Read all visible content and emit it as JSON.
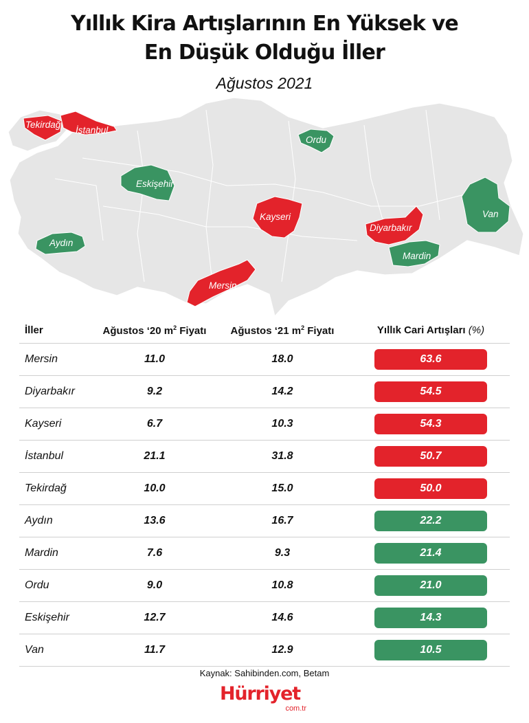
{
  "title": {
    "line1": "Yıllık Kira Artışlarının En Yüksek ve",
    "line2": "En Düşük Olduğu İller",
    "subtitle": "Ağustos 2021"
  },
  "colors": {
    "increase_high": "#e3232b",
    "increase_low": "#3a9462",
    "map_base": "#e6e6e6"
  },
  "map": {
    "labels": {
      "tekirdag": "Tekirdağ",
      "istanbul": "İstanbul",
      "ordu": "Ordu",
      "eskisehir": "Eskişehir",
      "kayseri": "Kayseri",
      "diyarbakir": "Diyarbakır",
      "van": "Van",
      "aydin": "Aydın",
      "mardin": "Mardin",
      "mersin": "Mersin"
    }
  },
  "table": {
    "headers": {
      "city": "İller",
      "v20": "Ağustos ‘20 m",
      "v20_sup": "2",
      "v20_tail": " Fiyatı",
      "v21": "Ağustos ‘21 m",
      "v21_sup": "2",
      "v21_tail": " Fiyatı",
      "pct": "Yıllık Cari Artışları",
      "pct_unit": "(%)"
    },
    "rows": [
      {
        "city": "Mersin",
        "v20": "11.0",
        "v21": "18.0",
        "pct": "63.6",
        "group": "high"
      },
      {
        "city": "Diyarbakır",
        "v20": "9.2",
        "v21": "14.2",
        "pct": "54.5",
        "group": "high"
      },
      {
        "city": "Kayseri",
        "v20": "6.7",
        "v21": "10.3",
        "pct": "54.3",
        "group": "high"
      },
      {
        "city": "İstanbul",
        "v20": "21.1",
        "v21": "31.8",
        "pct": "50.7",
        "group": "high"
      },
      {
        "city": "Tekirdağ",
        "v20": "10.0",
        "v21": "15.0",
        "pct": "50.0",
        "group": "high"
      },
      {
        "city": "Aydın",
        "v20": "13.6",
        "v21": "16.7",
        "pct": "22.2",
        "group": "low"
      },
      {
        "city": "Mardin",
        "v20": "7.6",
        "v21": "9.3",
        "pct": "21.4",
        "group": "low"
      },
      {
        "city": "Ordu",
        "v20": "9.0",
        "v21": "10.8",
        "pct": "21.0",
        "group": "low"
      },
      {
        "city": "Eskişehir",
        "v20": "12.7",
        "v21": "14.6",
        "pct": "14.3",
        "group": "low"
      },
      {
        "city": "Van",
        "v20": "11.7",
        "v21": "12.9",
        "pct": "10.5",
        "group": "low"
      }
    ]
  },
  "footer": {
    "source": "Kaynak: Sahibinden.com, Betam",
    "brand": "Hürriyet",
    "brand_domain": "com.tr"
  }
}
